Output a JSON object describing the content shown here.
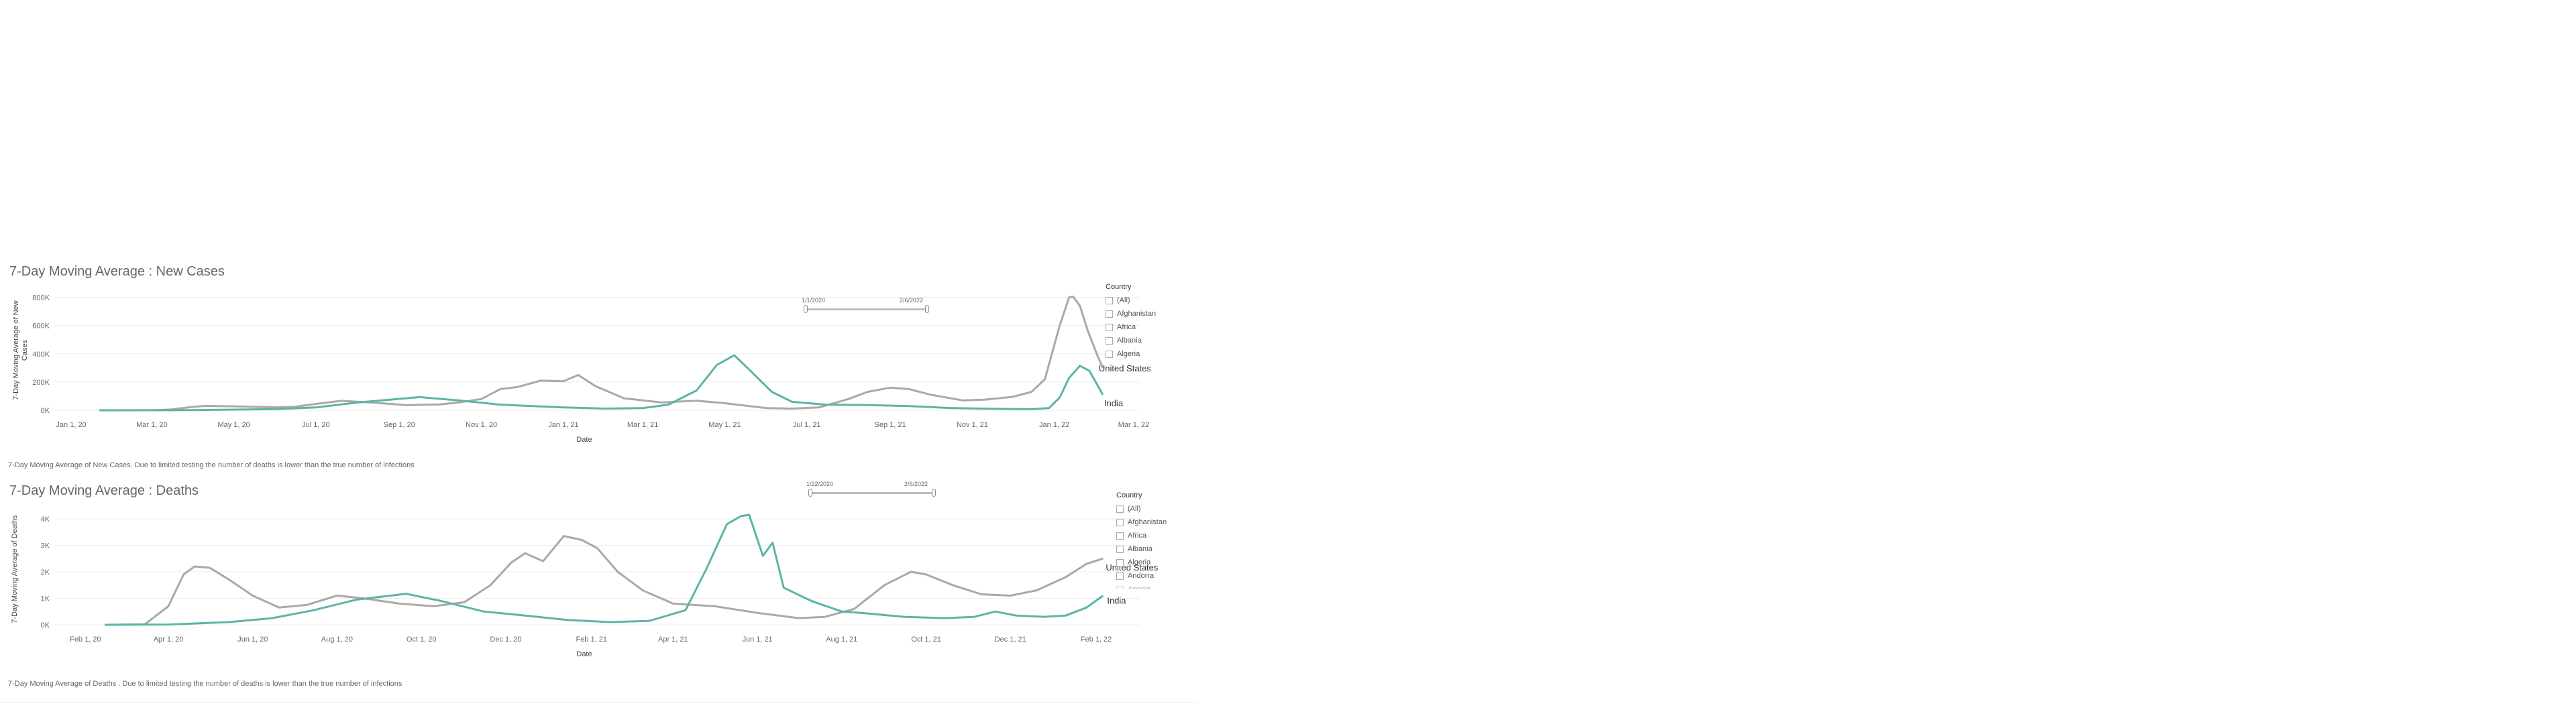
{
  "colors": {
    "united_states": "#a9a9a9",
    "india": "#5ab5a8",
    "grid": "#ededed"
  },
  "chart1": {
    "title": "7-Day Moving Average : New Cases",
    "footnote": "7-Day Moving Average of New Cases. Due to limited testing the number of deaths is lower than the true number of infections",
    "slider": {
      "start": "1/1/2020",
      "end": "2/6/2022"
    },
    "filter": {
      "title": "Country",
      "items": [
        "(All)",
        "Afghanistan",
        "Africa",
        "Albania",
        "Algeria"
      ]
    }
  },
  "chart2": {
    "title": "7-Day Moving Average : Deaths",
    "footnote": "7-Day Moving Average of Deaths . Due to limited testing the number of deaths is lower than the true number of infections",
    "slider": {
      "start": "1/22/2020",
      "end": "2/6/2022"
    },
    "filter": {
      "title": "Country",
      "items": [
        "(All)",
        "Afghanistan",
        "Africa",
        "Albania",
        "Algeria",
        "Andorra",
        "Angola"
      ]
    }
  },
  "chart_data": [
    {
      "type": "line",
      "title": "7-Day Moving Average : New Cases",
      "xlabel": "Date",
      "ylabel": "7-Day Moving Average of New Cases",
      "x_ticks": [
        "Jan 1, 20",
        "Mar 1, 20",
        "May 1, 20",
        "Jul 1, 20",
        "Sep 1, 20",
        "Nov 1, 20",
        "Jan 1, 21",
        "Mar 1, 21",
        "May 1, 21",
        "Jul 1, 21",
        "Sep 1, 21",
        "Nov 1, 21",
        "Jan 1, 22",
        "Mar 1, 22"
      ],
      "y_ticks": [
        "0K",
        "200K",
        "400K",
        "600K",
        "800K"
      ],
      "xlim": [
        "2019-12-20",
        "2022-03-06"
      ],
      "ylim": [
        0,
        850000
      ],
      "series": [
        {
          "name": "United States",
          "color": "#a9a9a9",
          "points": [
            [
              "2020-01-22",
              0
            ],
            [
              "2020-03-01",
              0
            ],
            [
              "2020-03-15",
              5000
            ],
            [
              "2020-04-01",
              25000
            ],
            [
              "2020-04-10",
              31000
            ],
            [
              "2020-05-01",
              28000
            ],
            [
              "2020-06-01",
              21000
            ],
            [
              "2020-06-15",
              24000
            ],
            [
              "2020-07-01",
              45000
            ],
            [
              "2020-07-20",
              67000
            ],
            [
              "2020-08-15",
              52000
            ],
            [
              "2020-09-07",
              36000
            ],
            [
              "2020-10-01",
              42000
            ],
            [
              "2020-10-15",
              55000
            ],
            [
              "2020-11-01",
              80000
            ],
            [
              "2020-11-15",
              150000
            ],
            [
              "2020-11-28",
              165000
            ],
            [
              "2020-12-15",
              210000
            ],
            [
              "2021-01-01",
              205000
            ],
            [
              "2021-01-12",
              250000
            ],
            [
              "2021-01-25",
              170000
            ],
            [
              "2021-02-15",
              85000
            ],
            [
              "2021-03-15",
              55000
            ],
            [
              "2021-04-10",
              68000
            ],
            [
              "2021-05-01",
              50000
            ],
            [
              "2021-06-01",
              15000
            ],
            [
              "2021-06-20",
              12000
            ],
            [
              "2021-07-10",
              20000
            ],
            [
              "2021-08-01",
              80000
            ],
            [
              "2021-08-15",
              130000
            ],
            [
              "2021-09-01",
              160000
            ],
            [
              "2021-09-15",
              150000
            ],
            [
              "2021-10-01",
              110000
            ],
            [
              "2021-10-25",
              70000
            ],
            [
              "2021-11-10",
              75000
            ],
            [
              "2021-12-01",
              95000
            ],
            [
              "2021-12-15",
              130000
            ],
            [
              "2021-12-25",
              220000
            ],
            [
              "2022-01-05",
              600000
            ],
            [
              "2022-01-12",
              800000
            ],
            [
              "2022-01-15",
              805000
            ],
            [
              "2022-01-20",
              740000
            ],
            [
              "2022-01-26",
              560000
            ],
            [
              "2022-02-02",
              390000
            ],
            [
              "2022-02-06",
              300000
            ]
          ]
        },
        {
          "name": "India",
          "color": "#5ab5a8",
          "points": [
            [
              "2020-01-22",
              0
            ],
            [
              "2020-04-01",
              1000
            ],
            [
              "2020-06-01",
              8000
            ],
            [
              "2020-07-01",
              20000
            ],
            [
              "2020-08-01",
              55000
            ],
            [
              "2020-09-16",
              93000
            ],
            [
              "2020-10-15",
              70000
            ],
            [
              "2020-11-15",
              40000
            ],
            [
              "2021-01-01",
              20000
            ],
            [
              "2021-02-01",
              12000
            ],
            [
              "2021-03-01",
              15000
            ],
            [
              "2021-03-20",
              40000
            ],
            [
              "2021-04-10",
              140000
            ],
            [
              "2021-04-25",
              320000
            ],
            [
              "2021-05-08",
              390000
            ],
            [
              "2021-05-20",
              280000
            ],
            [
              "2021-06-05",
              130000
            ],
            [
              "2021-06-20",
              60000
            ],
            [
              "2021-07-15",
              40000
            ],
            [
              "2021-08-15",
              37000
            ],
            [
              "2021-09-15",
              30000
            ],
            [
              "2021-10-15",
              16000
            ],
            [
              "2021-11-15",
              11000
            ],
            [
              "2021-12-15",
              7500
            ],
            [
              "2021-12-28",
              15000
            ],
            [
              "2022-01-05",
              90000
            ],
            [
              "2022-01-12",
              230000
            ],
            [
              "2022-01-20",
              315000
            ],
            [
              "2022-01-27",
              280000
            ],
            [
              "2022-02-02",
              180000
            ],
            [
              "2022-02-06",
              110000
            ]
          ]
        }
      ]
    },
    {
      "type": "line",
      "title": "7-Day Moving Average : Deaths",
      "xlabel": "Date",
      "ylabel": "7-Day Moving Average of Deaths",
      "x_ticks": [
        "Feb 1, 20",
        "Apr 1, 20",
        "Jun 1, 20",
        "Aug 1, 20",
        "Oct 1, 20",
        "Dec 1, 20",
        "Feb 1, 21",
        "Apr 1, 21",
        "Jun 1, 21",
        "Aug 1, 21",
        "Oct 1, 21",
        "Dec 1, 21",
        "Feb 1, 22"
      ],
      "y_ticks": [
        "0K",
        "1K",
        "2K",
        "3K",
        "4K"
      ],
      "xlim": [
        "2020-01-10",
        "2022-03-05"
      ],
      "ylim": [
        0,
        4200
      ],
      "series": [
        {
          "name": "United States",
          "color": "#a9a9a9",
          "points": [
            [
              "2020-02-15",
              0
            ],
            [
              "2020-03-15",
              20
            ],
            [
              "2020-04-01",
              700
            ],
            [
              "2020-04-12",
              1900
            ],
            [
              "2020-04-20",
              2200
            ],
            [
              "2020-05-01",
              2150
            ],
            [
              "2020-05-15",
              1700
            ],
            [
              "2020-06-01",
              1100
            ],
            [
              "2020-06-20",
              650
            ],
            [
              "2020-07-10",
              750
            ],
            [
              "2020-08-01",
              1100
            ],
            [
              "2020-08-20",
              1000
            ],
            [
              "2020-09-15",
              800
            ],
            [
              "2020-10-10",
              700
            ],
            [
              "2020-11-01",
              850
            ],
            [
              "2020-11-20",
              1500
            ],
            [
              "2020-12-05",
              2350
            ],
            [
              "2020-12-15",
              2700
            ],
            [
              "2020-12-28",
              2400
            ],
            [
              "2021-01-12",
              3350
            ],
            [
              "2021-01-25",
              3200
            ],
            [
              "2021-02-05",
              2900
            ],
            [
              "2021-02-20",
              2000
            ],
            [
              "2021-03-10",
              1300
            ],
            [
              "2021-04-01",
              800
            ],
            [
              "2021-05-01",
              700
            ],
            [
              "2021-06-01",
              450
            ],
            [
              "2021-07-01",
              250
            ],
            [
              "2021-07-20",
              300
            ],
            [
              "2021-08-10",
              600
            ],
            [
              "2021-09-01",
              1500
            ],
            [
              "2021-09-20",
              2000
            ],
            [
              "2021-10-01",
              1900
            ],
            [
              "2021-10-20",
              1500
            ],
            [
              "2021-11-10",
              1150
            ],
            [
              "2021-12-01",
              1100
            ],
            [
              "2021-12-20",
              1300
            ],
            [
              "2022-01-10",
              1800
            ],
            [
              "2022-01-25",
              2300
            ],
            [
              "2022-02-06",
              2500
            ]
          ]
        },
        {
          "name": "India",
          "color": "#5ab5a8",
          "points": [
            [
              "2020-02-15",
              0
            ],
            [
              "2020-04-01",
              10
            ],
            [
              "2020-05-15",
              100
            ],
            [
              "2020-06-15",
              250
            ],
            [
              "2020-07-15",
              550
            ],
            [
              "2020-08-15",
              950
            ],
            [
              "2020-09-20",
              1170
            ],
            [
              "2020-10-15",
              900
            ],
            [
              "2020-11-15",
              500
            ],
            [
              "2020-12-15",
              350
            ],
            [
              "2021-01-15",
              180
            ],
            [
              "2021-02-15",
              100
            ],
            [
              "2021-03-15",
              150
            ],
            [
              "2021-04-10",
              550
            ],
            [
              "2021-04-25",
              2100
            ],
            [
              "2021-05-10",
              3800
            ],
            [
              "2021-05-20",
              4100
            ],
            [
              "2021-05-26",
              4150
            ],
            [
              "2021-06-05",
              2600
            ],
            [
              "2021-06-12",
              3100
            ],
            [
              "2021-06-20",
              1400
            ],
            [
              "2021-07-10",
              900
            ],
            [
              "2021-08-01",
              500
            ],
            [
              "2021-08-15",
              450
            ],
            [
              "2021-09-15",
              300
            ],
            [
              "2021-10-15",
              250
            ],
            [
              "2021-11-05",
              300
            ],
            [
              "2021-11-20",
              500
            ],
            [
              "2021-12-05",
              350
            ],
            [
              "2021-12-25",
              300
            ],
            [
              "2022-01-10",
              350
            ],
            [
              "2022-01-25",
              650
            ],
            [
              "2022-02-06",
              1100
            ]
          ]
        }
      ]
    }
  ]
}
